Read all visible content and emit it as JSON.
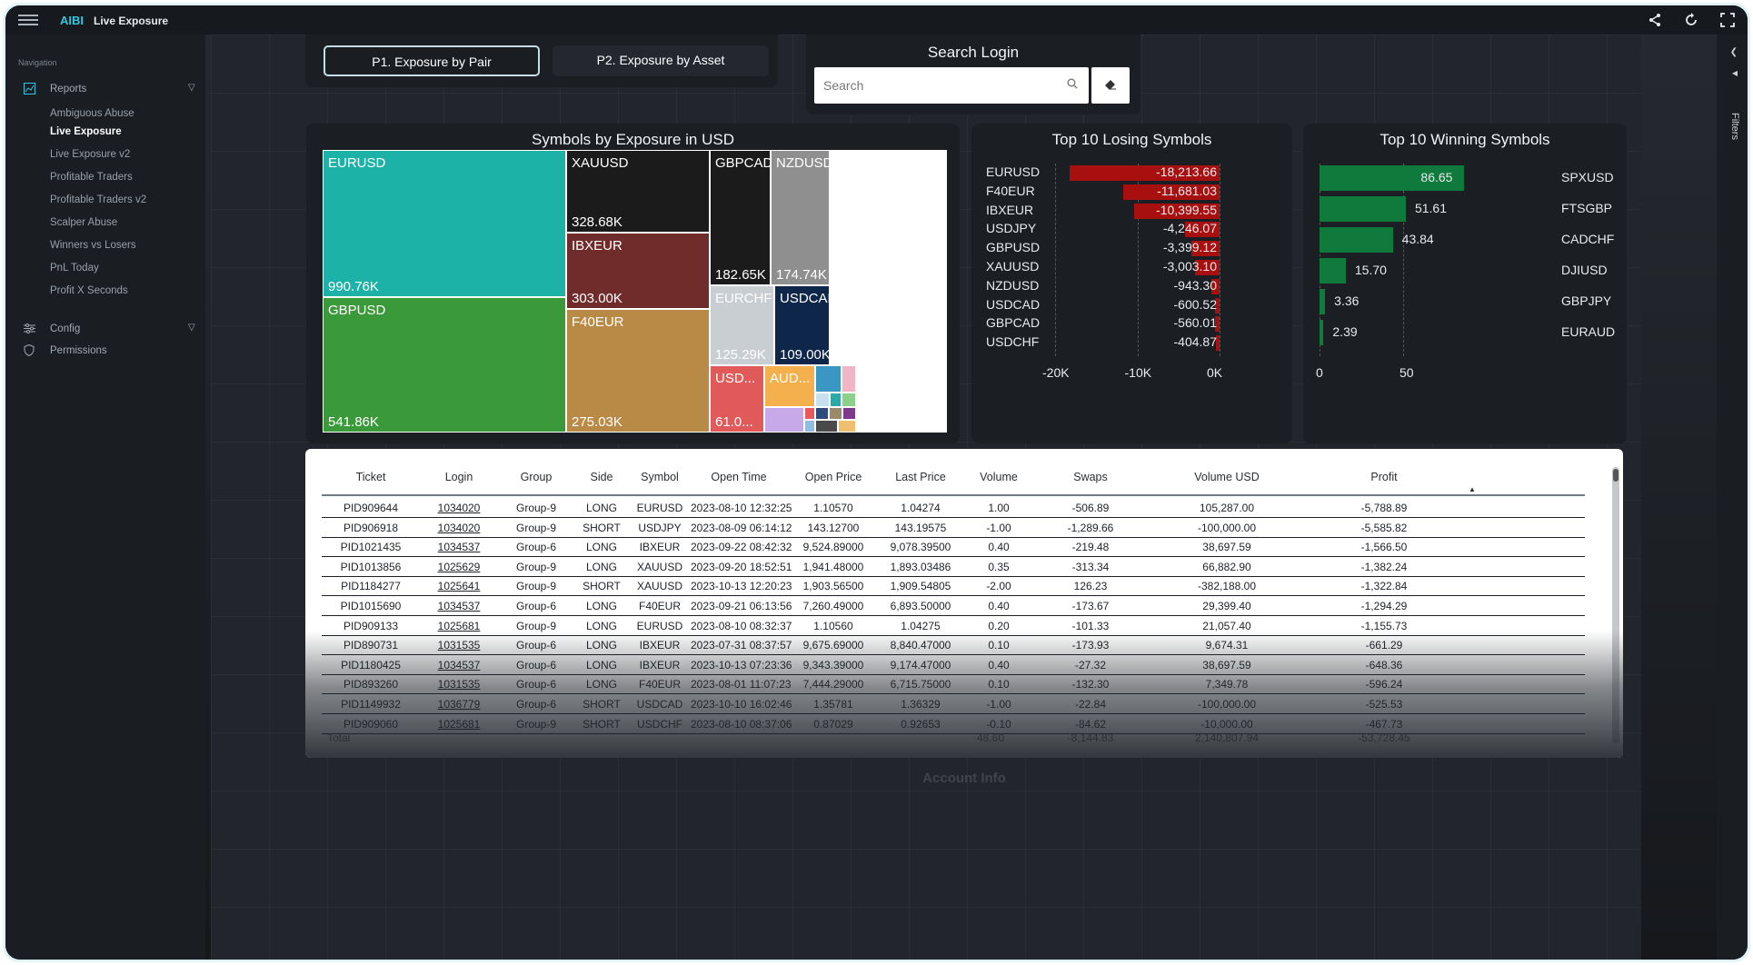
{
  "app": {
    "brand": "AIBI",
    "title": "Live Exposure"
  },
  "topbar_icons": [
    "share-icon",
    "refresh-icon",
    "fullscreen-icon"
  ],
  "sidebar": {
    "heading": "Navigation",
    "reports_label": "Reports",
    "reports_items": [
      "Ambiguous Abuse",
      "Live Exposure",
      "Live Exposure v2",
      "Profitable Traders",
      "Profitable Traders v2",
      "Scalper Abuse",
      "Winners vs Losers",
      "PnL Today",
      "Profit X Seconds"
    ],
    "active_item": "Live Exposure",
    "config_label": "Config",
    "permissions_label": "Permissions"
  },
  "right_strip": {
    "filters_label": "Filters"
  },
  "tabs": {
    "tab1": "P1. Exposure by Pair",
    "tab2": "P2. Exposure by Asset",
    "active": "P1. Exposure by Pair"
  },
  "search": {
    "title": "Search Login",
    "placeholder": "Search"
  },
  "treemap": {
    "title": "Symbols by Exposure in USD",
    "cells": [
      {
        "name": "EURUSD",
        "value": "990.76K",
        "color": "#1cb2a7"
      },
      {
        "name": "GBPUSD",
        "value": "541.86K",
        "color": "#3a9a3a"
      },
      {
        "name": "XAUUSD",
        "value": "328.68K",
        "color": "#1b1b1b"
      },
      {
        "name": "IBXEUR",
        "value": "303.00K",
        "color": "#702b2b"
      },
      {
        "name": "F40EUR",
        "value": "275.03K",
        "color": "#b98a45"
      },
      {
        "name": "GBPCAD",
        "value": "182.65K",
        "color": "#1b1b1b"
      },
      {
        "name": "NZDUSD",
        "value": "174.74K",
        "color": "#8f8f8f"
      },
      {
        "name": "EURCHF",
        "value": "125.29K",
        "color": "#c9ced3"
      },
      {
        "name": "USDCAD",
        "value": "109.00K",
        "color": "#0d2649"
      },
      {
        "name": "USD...",
        "value": "61.0...",
        "color": "#e05a5a"
      },
      {
        "name": "AUD...",
        "value": "",
        "color": "#f4b04c"
      }
    ],
    "small_colors": [
      "#3a97c4",
      "#f0b6c8",
      "#c6e0f0",
      "#2ea7a7",
      "#8bd18b",
      "#2c4d7a",
      "#9a8a6a",
      "#7b3a8c",
      "#c7a8e8",
      "#e85a5a",
      "#8fbfe0",
      "#4a4a4a",
      "#f0c070"
    ]
  },
  "chart_data": [
    {
      "type": "bar",
      "title": "Top 10 Losing Symbols",
      "orientation": "horizontal",
      "categories": [
        "EURUSD",
        "F40EUR",
        "IBXEUR",
        "USDJPY",
        "GBPUSD",
        "XAUUSD",
        "NZDUSD",
        "USDCAD",
        "GBPCAD",
        "USDCHF"
      ],
      "values": [
        -18213.66,
        -11681.03,
        -10399.55,
        -4246.07,
        -3399.12,
        -3003.1,
        -943.3,
        -600.52,
        -560.01,
        -404.87
      ],
      "labels": [
        "-18,213.66",
        "-11,681.03",
        "-10,399.55",
        "-4,246.07",
        "-3,399.12",
        "-3,003.10",
        "-943.30",
        "-600.52",
        "-560.01",
        "-404.87"
      ],
      "xlim": [
        -20000,
        0
      ],
      "xticks": [
        "-20K",
        "-10K",
        "0K"
      ],
      "color": "#a80f0f"
    },
    {
      "type": "bar",
      "title": "Top 10 Winning Symbols",
      "orientation": "horizontal",
      "categories": [
        "SPXUSD",
        "FTSGBP",
        "CADCHF",
        "DJIUSD",
        "GBPJPY",
        "EURAUD"
      ],
      "values": [
        86.65,
        51.61,
        43.84,
        15.7,
        3.36,
        2.39
      ],
      "labels": [
        "86.65",
        "51.61",
        "43.84",
        "15.70",
        "3.36",
        "2.39"
      ],
      "xlim": [
        0,
        100
      ],
      "xticks": [
        "0",
        "50"
      ],
      "color": "#0f7a3c"
    }
  ],
  "table": {
    "columns": [
      "Ticket",
      "Login",
      "Group",
      "Side",
      "Symbol",
      "Open Time",
      "Open Price",
      "Last Price",
      "Volume",
      "Swaps",
      "Volume USD",
      "Profit"
    ],
    "rows": [
      [
        "PID909644",
        "1034020",
        "Group-9",
        "LONG",
        "EURUSD",
        "2023-08-10 12:32:25",
        "1.10570",
        "1.04274",
        "1.00",
        "-506.89",
        "105,287.00",
        "-5,788.89"
      ],
      [
        "PID906918",
        "1034020",
        "Group-9",
        "SHORT",
        "USDJPY",
        "2023-08-09 06:14:12",
        "143.12700",
        "143.19575",
        "-1.00",
        "-1,289.66",
        "-100,000.00",
        "-5,585.82"
      ],
      [
        "PID1021435",
        "1034537",
        "Group-6",
        "LONG",
        "IBXEUR",
        "2023-09-22 08:42:32",
        "9,524.89000",
        "9,078.39500",
        "0.40",
        "-219.48",
        "38,697.59",
        "-1,566.50"
      ],
      [
        "PID1013856",
        "1025629",
        "Group-9",
        "LONG",
        "XAUUSD",
        "2023-09-20 18:52:51",
        "1,941.48000",
        "1,893.03486",
        "0.35",
        "-313.34",
        "66,882.90",
        "-1,382.24"
      ],
      [
        "PID1184277",
        "1025641",
        "Group-9",
        "SHORT",
        "XAUUSD",
        "2023-10-13 12:20:23",
        "1,903.56500",
        "1,909.54805",
        "-2.00",
        "126.23",
        "-382,188.00",
        "-1,322.84"
      ],
      [
        "PID1015690",
        "1034537",
        "Group-6",
        "LONG",
        "F40EUR",
        "2023-09-21 06:13:56",
        "7,260.49000",
        "6,893.50000",
        "0.40",
        "-173.67",
        "29,399.40",
        "-1,294.29"
      ],
      [
        "PID909133",
        "1025681",
        "Group-9",
        "LONG",
        "EURUSD",
        "2023-08-10 08:32:37",
        "1.10560",
        "1.04275",
        "0.20",
        "-101.33",
        "21,057.40",
        "-1,155.73"
      ],
      [
        "PID890731",
        "1031535",
        "Group-6",
        "LONG",
        "IBXEUR",
        "2023-07-31 08:37:57",
        "9,675.69000",
        "8,840.47000",
        "0.10",
        "-173.93",
        "9,674.31",
        "-661.29"
      ],
      [
        "PID1180425",
        "1034537",
        "Group-6",
        "LONG",
        "IBXEUR",
        "2023-10-13 07:23:36",
        "9,343.39000",
        "9,174.47000",
        "0.40",
        "-27.32",
        "38,697.59",
        "-648.36"
      ],
      [
        "PID893260",
        "1031535",
        "Group-6",
        "LONG",
        "F40EUR",
        "2023-08-01 11:07:23",
        "7,444.29000",
        "6,715.75000",
        "0.10",
        "-132.30",
        "7,349.78",
        "-596.24"
      ],
      [
        "PID1149932",
        "1036779",
        "Group-6",
        "SHORT",
        "USDCAD",
        "2023-10-10 16:02:46",
        "1.35781",
        "1.36329",
        "-1.00",
        "-22.84",
        "-100,000.00",
        "-525.53"
      ],
      [
        "PID909060",
        "1025681",
        "Group-9",
        "SHORT",
        "USDCHF",
        "2023-08-10 08:37:06",
        "0.87029",
        "0.92653",
        "-0.10",
        "-84.62",
        "-10,000.00",
        "-467.73"
      ]
    ],
    "total": {
      "label": "Total",
      "volume": "48.60",
      "swaps": "-8,144.83",
      "volume_usd": "2,140,807.94",
      "profit": "-53,728.45"
    }
  },
  "account_info": {
    "title": "Account Info"
  }
}
